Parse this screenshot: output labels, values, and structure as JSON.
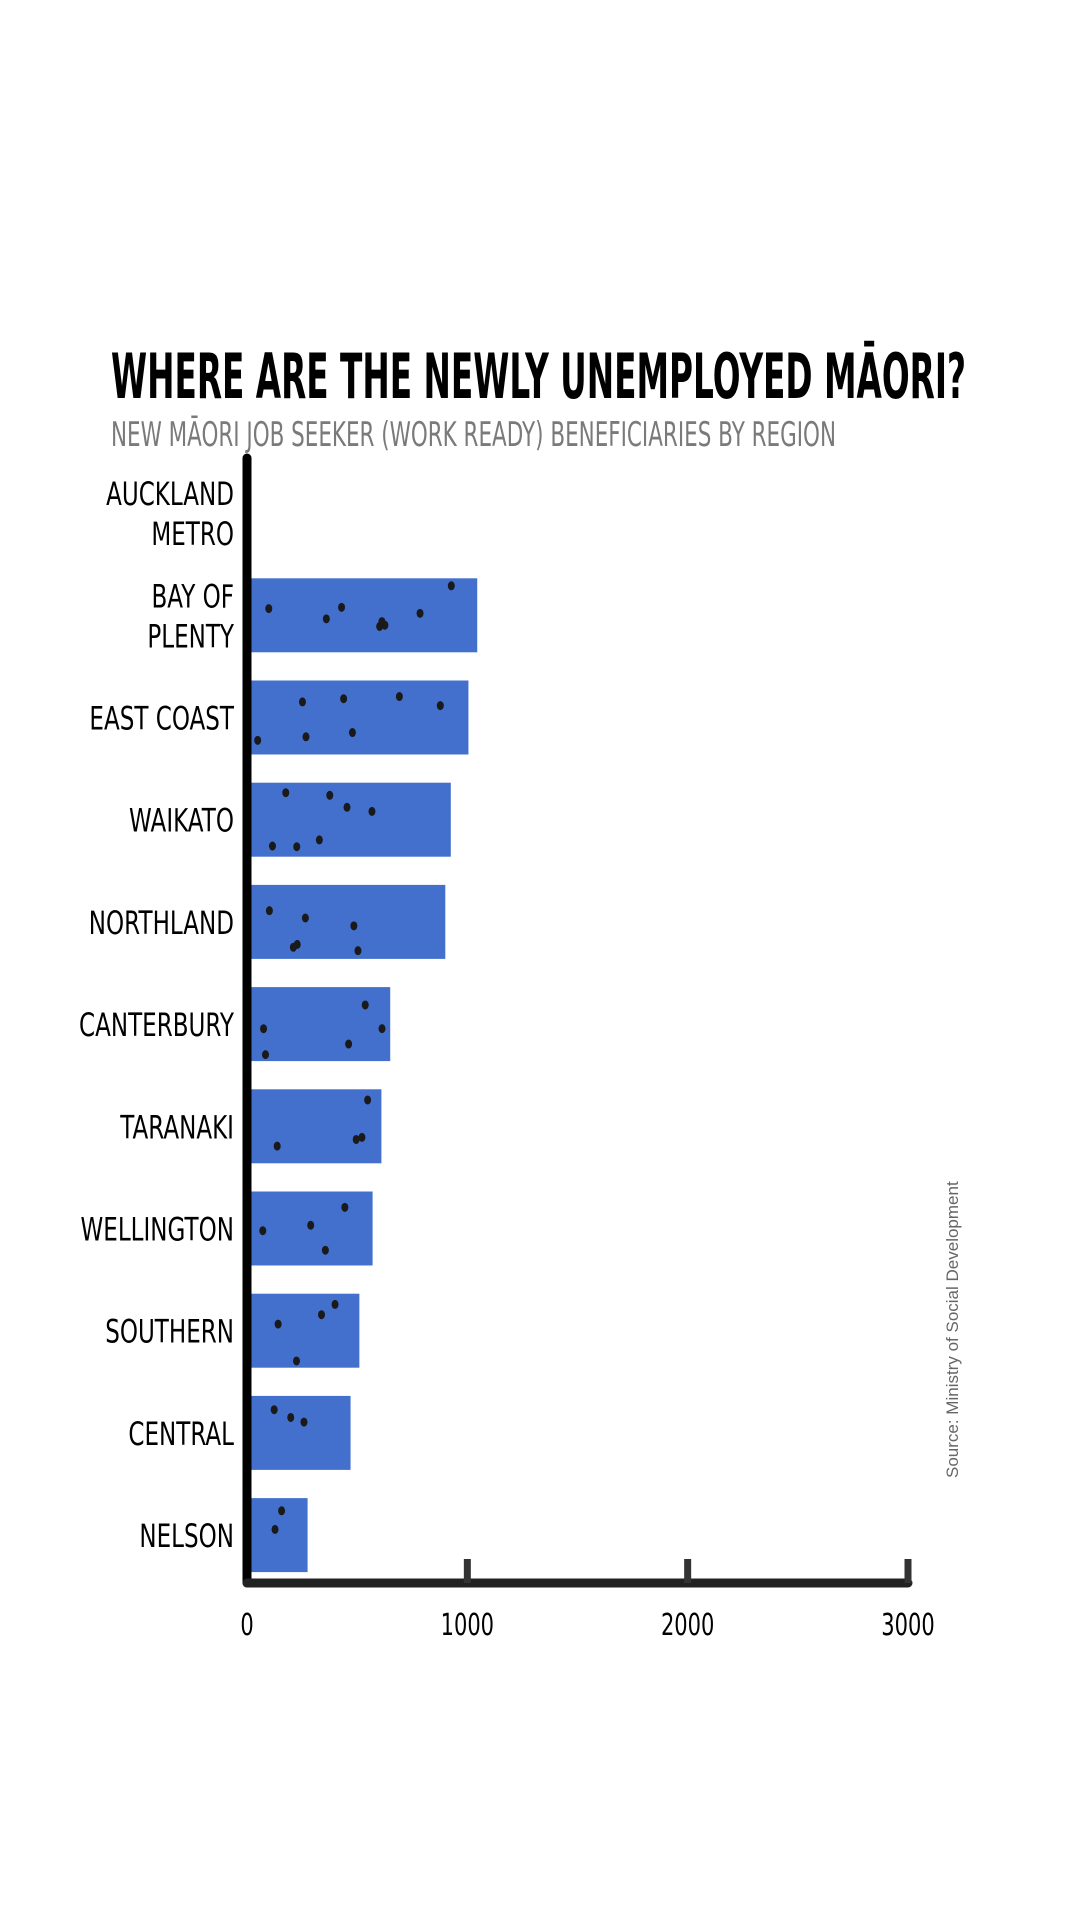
{
  "chart_data": {
    "type": "bar",
    "orientation": "horizontal",
    "title": "WHERE ARE THE NEWLY UNEMPLOYED MĀORI?",
    "subtitle": "NEW MĀORI JOB SEEKER (WORK READY) BENEFICIARIES BY REGION",
    "categories": [
      [
        "AUCKLAND",
        "METRO"
      ],
      [
        "BAY OF",
        "PLENTY"
      ],
      [
        "EAST COAST"
      ],
      [
        "WAIKATO"
      ],
      [
        "NORTHLAND"
      ],
      [
        "CANTERBURY"
      ],
      [
        "TARANAKI"
      ],
      [
        "WELLINGTON"
      ],
      [
        "SOUTHERN"
      ],
      [
        "CENTRAL"
      ],
      [
        "NELSON"
      ]
    ],
    "values": [
      null,
      1045,
      1005,
      925,
      900,
      650,
      610,
      570,
      510,
      470,
      275
    ],
    "xlim": [
      0,
      3000
    ],
    "xticks": [
      "0",
      "1000",
      "2000",
      "3000"
    ],
    "xtick_values": [
      0,
      1000,
      2000,
      3000
    ],
    "bar_color": "#4470cd",
    "grid": false,
    "source": "Source: Ministry of Social Development"
  }
}
